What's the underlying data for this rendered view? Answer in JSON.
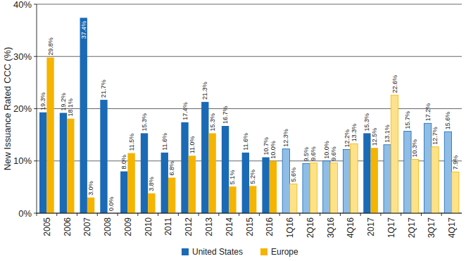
{
  "chart_data": {
    "type": "bar",
    "y_label": "New Issuance Rated CCC (%)",
    "categories": [
      "2005",
      "2006",
      "2007",
      "2008",
      "2009",
      "2010",
      "2011",
      "2012",
      "2013",
      "2014",
      "2015",
      "2016",
      "1Q16",
      "2Q16",
      "3Q16",
      "4Q16",
      "2017",
      "1Q17",
      "2Q17",
      "3Q17",
      "4Q17"
    ],
    "series": [
      {
        "name": "United States",
        "color": "#1a6ab5",
        "colors": [
          "#1a6ab5",
          "#1a6ab5",
          "#1a6ab5",
          "#1a6ab5",
          "#1a6ab5",
          "#1a6ab5",
          "#1a6ab5",
          "#1a6ab5",
          "#1a6ab5",
          "#1a6ab5",
          "#1a6ab5",
          "#1a6ab5",
          "#8fbde6",
          "#8fbde6",
          "#8fbde6",
          "#8fbde6",
          "#1a6ab5",
          "#8fbde6",
          "#8fbde6",
          "#8fbde6",
          "#8fbde6"
        ],
        "values": [
          19.3,
          19.2,
          37.4,
          21.7,
          8.0,
          15.3,
          11.6,
          17.4,
          21.3,
          16.7,
          11.6,
          10.7,
          12.3,
          9.5,
          10.0,
          12.2,
          15.3,
          13.1,
          15.7,
          17.2,
          15.6
        ],
        "value_labels": [
          "19.3%",
          "19.2%",
          "37.4%",
          "21.7%",
          "8.0%",
          "15.3%",
          "11.6%",
          "17.4%",
          "21.3%",
          "16.7%",
          "11.6%",
          "10.7%",
          "12.3%",
          "9.5%",
          "10.0%",
          "12.2%",
          "15.3%",
          "13.1%",
          "15.7%",
          "17.2%",
          "15.6%"
        ]
      },
      {
        "name": "Europe",
        "color": "#f5b400",
        "colors": [
          "#f5b400",
          "#f5b400",
          "#f5b400",
          "#f5b400",
          "#f5b400",
          "#f5b400",
          "#f5b400",
          "#f5b400",
          "#f5b400",
          "#f5b400",
          "#f5b400",
          "#f5b400",
          "#fde28a",
          "#fde28a",
          "#fde28a",
          "#fde28a",
          "#f5b400",
          "#fde28a",
          "#fde28a",
          "#fde28a",
          "#fde28a"
        ],
        "values": [
          29.8,
          18.1,
          3.0,
          0.0,
          11.5,
          3.8,
          6.8,
          11.0,
          15.3,
          5.1,
          5.2,
          10.0,
          5.6,
          9.6,
          9.6,
          13.3,
          12.5,
          22.6,
          10.3,
          12.7,
          7.9
        ],
        "value_labels": [
          "29.8%",
          "18.1%",
          "3.0%",
          "0.0%",
          "11.5%",
          "3.8%",
          "6.8%",
          "11.0%",
          "15.3%",
          "5.1%",
          "5.2%",
          "10.0%",
          "5.6%",
          "9.6%",
          "9.6%",
          "13.3%",
          "12.5%",
          "22.6%",
          "10.3%",
          "12.7%",
          "7.9%"
        ]
      }
    ],
    "ylim": [
      0,
      40
    ],
    "yticks": [
      {
        "value": 0,
        "label": "0%"
      },
      {
        "value": 10,
        "label": "10%"
      },
      {
        "value": 20,
        "label": "20%"
      },
      {
        "value": 30,
        "label": "30%"
      },
      {
        "value": 40,
        "label": "40%"
      }
    ],
    "grid": true,
    "legend": "bottom",
    "data_labels": true
  }
}
